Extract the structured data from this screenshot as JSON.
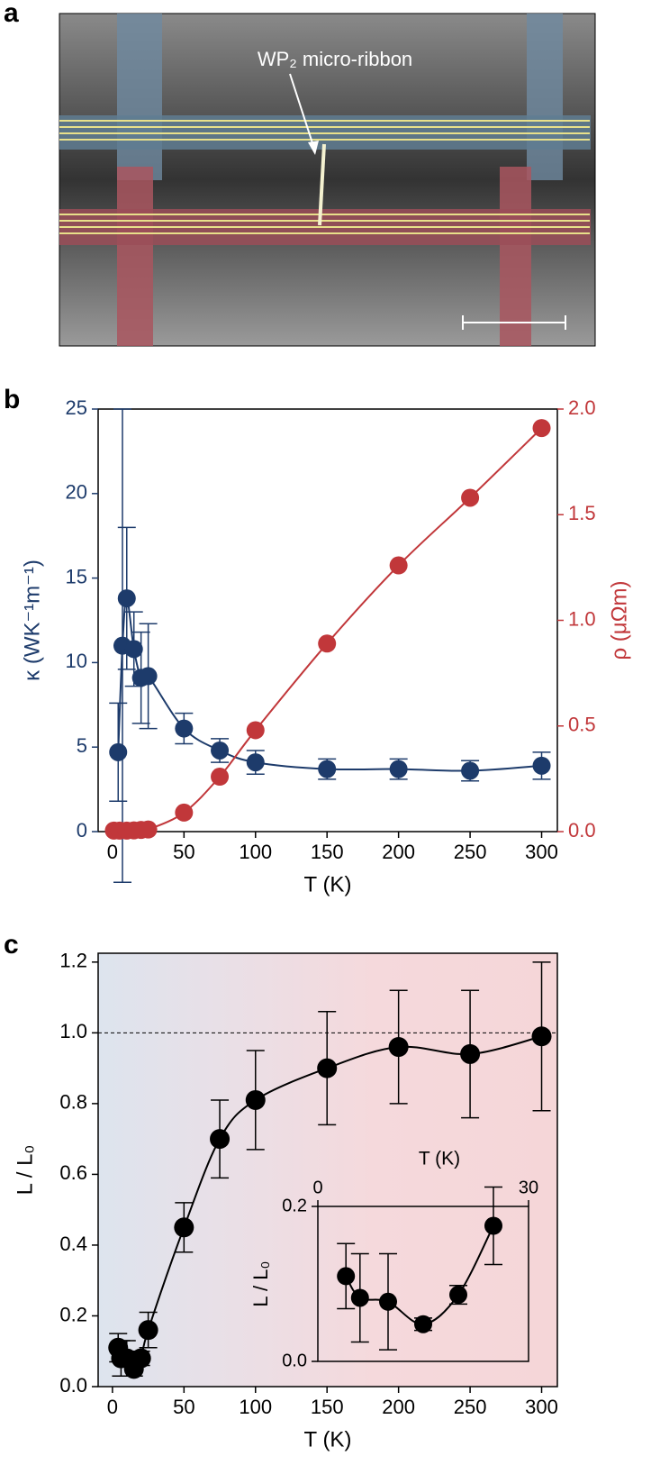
{
  "panel_labels": [
    "a",
    "b",
    "c"
  ],
  "figure_a": {
    "annotation": "WP₂ micro-ribbon"
  },
  "chart_data": [
    {
      "type": "scatter",
      "xlabel": "T (K)",
      "ylabel": "κ (WK⁻¹m⁻¹)",
      "y2label": "ρ (μΩm)",
      "xlim": [
        -10,
        311
      ],
      "ylim": [
        0,
        25
      ],
      "y2lim": [
        0,
        2.0
      ],
      "xticks": [
        0,
        50,
        100,
        150,
        200,
        250,
        300
      ],
      "yticks": [
        0,
        5,
        10,
        15,
        20,
        25
      ],
      "y2ticks": [
        {
          "value": 0,
          "label": "0.0"
        },
        0.5,
        {
          "value": 1,
          "label": "1.0"
        },
        1.5,
        {
          "value": 2,
          "label": "2.0"
        }
      ],
      "series": [
        {
          "name": "κ",
          "color": "#1d3b6b",
          "x": [
            4,
            7,
            10,
            15,
            20,
            25,
            50,
            75,
            100,
            150,
            200,
            250,
            300
          ],
          "values": [
            4.7,
            11.0,
            13.8,
            10.8,
            9.1,
            9.2,
            6.1,
            4.8,
            4.1,
            3.7,
            3.7,
            3.6,
            3.9
          ],
          "errors": [
            2.9,
            14.0,
            4.2,
            2.2,
            2.7,
            3.1,
            0.9,
            0.7,
            0.7,
            0.6,
            0.6,
            0.6,
            0.8
          ]
        },
        {
          "name": "ρ",
          "color": "#c1373a",
          "axis": "y2",
          "x": [
            1,
            5,
            10,
            15,
            20,
            25,
            50,
            75,
            100,
            150,
            200,
            250,
            300
          ],
          "values": [
            0.005,
            0.005,
            0.005,
            0.006,
            0.008,
            0.01,
            0.09,
            0.26,
            0.48,
            0.89,
            1.26,
            1.58,
            1.91
          ]
        }
      ]
    },
    {
      "type": "scatter",
      "xlabel": "T (K)",
      "ylabel": "L / L₀",
      "xlim": [
        -10,
        311
      ],
      "ylim": [
        0,
        1.225
      ],
      "xticks": [
        0,
        50,
        100,
        150,
        200,
        250,
        300
      ],
      "yticks": [
        {
          "value": 0,
          "label": "0.0"
        },
        0.2,
        0.4,
        0.6,
        0.8,
        {
          "value": 1,
          "label": "1.0"
        },
        {
          "value": 1.2,
          "label": "1.2"
        }
      ],
      "hline": 1,
      "series": [
        {
          "name": "L/L₀",
          "color": "#000000",
          "x": [
            4,
            6,
            10,
            15,
            20,
            25,
            50,
            75,
            100,
            150,
            200,
            250,
            300
          ],
          "values": [
            0.11,
            0.08,
            0.08,
            0.05,
            0.08,
            0.16,
            0.45,
            0.7,
            0.81,
            0.9,
            0.96,
            0.94,
            0.99
          ],
          "errors": [
            0.04,
            0.05,
            0.05,
            0.02,
            0.02,
            0.05,
            0.07,
            0.11,
            0.14,
            0.16,
            0.16,
            0.18,
            0.21
          ]
        }
      ]
    },
    {
      "type": "scatter",
      "xlabel": "T (K)",
      "ylabel": "L / L₀",
      "xlim": [
        0,
        30
      ],
      "ylim": [
        0,
        0.2
      ],
      "xticks": [
        0,
        30
      ],
      "yticks": [
        {
          "value": 0,
          "label": "0.0"
        },
        0.2
      ],
      "series": [
        {
          "name": "L/L₀ inset",
          "color": "#000000",
          "x": [
            4,
            6,
            10,
            15,
            20,
            25
          ],
          "values": [
            0.11,
            0.082,
            0.077,
            0.048,
            0.086,
            0.175
          ],
          "errors": [
            0.042,
            0.057,
            0.062,
            0.008,
            0.012,
            0.05
          ]
        }
      ]
    }
  ]
}
